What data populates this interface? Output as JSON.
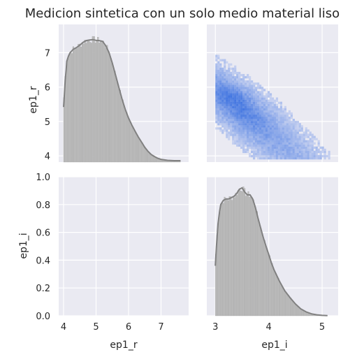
{
  "chart_data": {
    "type": "pairplot",
    "title": "Medicion sintetica con un solo medio material liso",
    "variables": [
      "ep1_r",
      "ep1_i"
    ],
    "colors": {
      "background": "#eaeaf2",
      "grid": "#ffffff",
      "hist_fill": "#bdbdbd",
      "hist_edge": "#a0a0a0",
      "kde_line": "#808080",
      "density_light": "#c8d2f0",
      "density_dark": "#3d72e0",
      "text": "#262626"
    },
    "grid": true,
    "panels": [
      {
        "id": "ep1_r-hist",
        "type": "histogram+kde",
        "variable": "ep1_r",
        "xlim": [
          3.85,
          7.85
        ],
        "ylim": [
          3.82,
          7.82
        ],
        "kde_curve": [
          [
            4.0,
            5.42
          ],
          [
            4.02,
            5.7
          ],
          [
            4.05,
            6.2
          ],
          [
            4.08,
            6.5
          ],
          [
            4.1,
            6.75
          ],
          [
            4.15,
            6.9
          ],
          [
            4.2,
            7.0
          ],
          [
            4.3,
            7.1
          ],
          [
            4.4,
            7.15
          ],
          [
            4.5,
            7.22
          ],
          [
            4.6,
            7.3
          ],
          [
            4.7,
            7.35
          ],
          [
            4.8,
            7.37
          ],
          [
            4.9,
            7.38
          ],
          [
            5.0,
            7.36
          ],
          [
            5.1,
            7.35
          ],
          [
            5.2,
            7.33
          ],
          [
            5.3,
            7.2
          ],
          [
            5.4,
            7.0
          ],
          [
            5.5,
            6.7
          ],
          [
            5.6,
            6.35
          ],
          [
            5.7,
            6.0
          ],
          [
            5.8,
            5.65
          ],
          [
            5.9,
            5.35
          ],
          [
            6.0,
            5.1
          ],
          [
            6.1,
            4.9
          ],
          [
            6.2,
            4.72
          ],
          [
            6.3,
            4.55
          ],
          [
            6.4,
            4.4
          ],
          [
            6.5,
            4.25
          ],
          [
            6.6,
            4.13
          ],
          [
            6.7,
            4.04
          ],
          [
            6.8,
            3.98
          ],
          [
            6.9,
            3.93
          ],
          [
            7.0,
            3.9
          ],
          [
            7.2,
            3.87
          ],
          [
            7.4,
            3.86
          ],
          [
            7.6,
            3.86
          ]
        ],
        "hist_peak_at": 4.8
      },
      {
        "id": "ep1_r-vs-ep1_i",
        "type": "2d-histogram",
        "x_variable": "ep1_i",
        "y_variable": "ep1_r",
        "xlim": [
          2.84,
          5.3
        ],
        "ylim": [
          3.82,
          7.82
        ],
        "trend": "negative",
        "x_range": [
          3.0,
          5.15
        ],
        "y_range": [
          3.9,
          7.0
        ]
      },
      {
        "id": "empty",
        "type": "empty",
        "x_variable": "ep1_r",
        "y_variable": "ep1_i",
        "xlim": [
          3.85,
          7.85
        ],
        "ylim": [
          0.0,
          1.0
        ]
      },
      {
        "id": "ep1_i-hist",
        "type": "histogram+kde",
        "variable": "ep1_i",
        "xlim": [
          2.84,
          5.3
        ],
        "ylim": [
          0.0,
          1.0
        ],
        "kde_curve": [
          [
            3.0,
            0.36
          ],
          [
            3.02,
            0.5
          ],
          [
            3.05,
            0.66
          ],
          [
            3.08,
            0.75
          ],
          [
            3.1,
            0.8
          ],
          [
            3.15,
            0.83
          ],
          [
            3.2,
            0.84
          ],
          [
            3.25,
            0.84
          ],
          [
            3.3,
            0.85
          ],
          [
            3.35,
            0.86
          ],
          [
            3.4,
            0.88
          ],
          [
            3.45,
            0.91
          ],
          [
            3.5,
            0.92
          ],
          [
            3.55,
            0.89
          ],
          [
            3.6,
            0.87
          ],
          [
            3.65,
            0.87
          ],
          [
            3.7,
            0.84
          ],
          [
            3.75,
            0.78
          ],
          [
            3.8,
            0.7
          ],
          [
            3.85,
            0.63
          ],
          [
            3.9,
            0.56
          ],
          [
            3.95,
            0.5
          ],
          [
            4.0,
            0.44
          ],
          [
            4.05,
            0.38
          ],
          [
            4.1,
            0.33
          ],
          [
            4.2,
            0.25
          ],
          [
            4.3,
            0.18
          ],
          [
            4.4,
            0.13
          ],
          [
            4.5,
            0.085
          ],
          [
            4.6,
            0.05
          ],
          [
            4.7,
            0.028
          ],
          [
            4.8,
            0.014
          ],
          [
            4.9,
            0.007
          ],
          [
            5.0,
            0.003
          ],
          [
            5.1,
            0.001
          ]
        ],
        "hist_peak_at": 3.5
      }
    ],
    "axes": {
      "left_column_xlabel": "ep1_r",
      "right_column_xlabel": "ep1_i",
      "top_row_ylabel": "ep1_r",
      "bottom_row_ylabel": "ep1_i",
      "ep1_r_ticks": [
        "4",
        "5",
        "6",
        "7"
      ],
      "ep1_i_ticks": [
        "3",
        "4",
        "5"
      ],
      "density_ticks": [
        "0.0",
        "0.2",
        "0.4",
        "0.6",
        "0.8",
        "1.0"
      ]
    }
  }
}
